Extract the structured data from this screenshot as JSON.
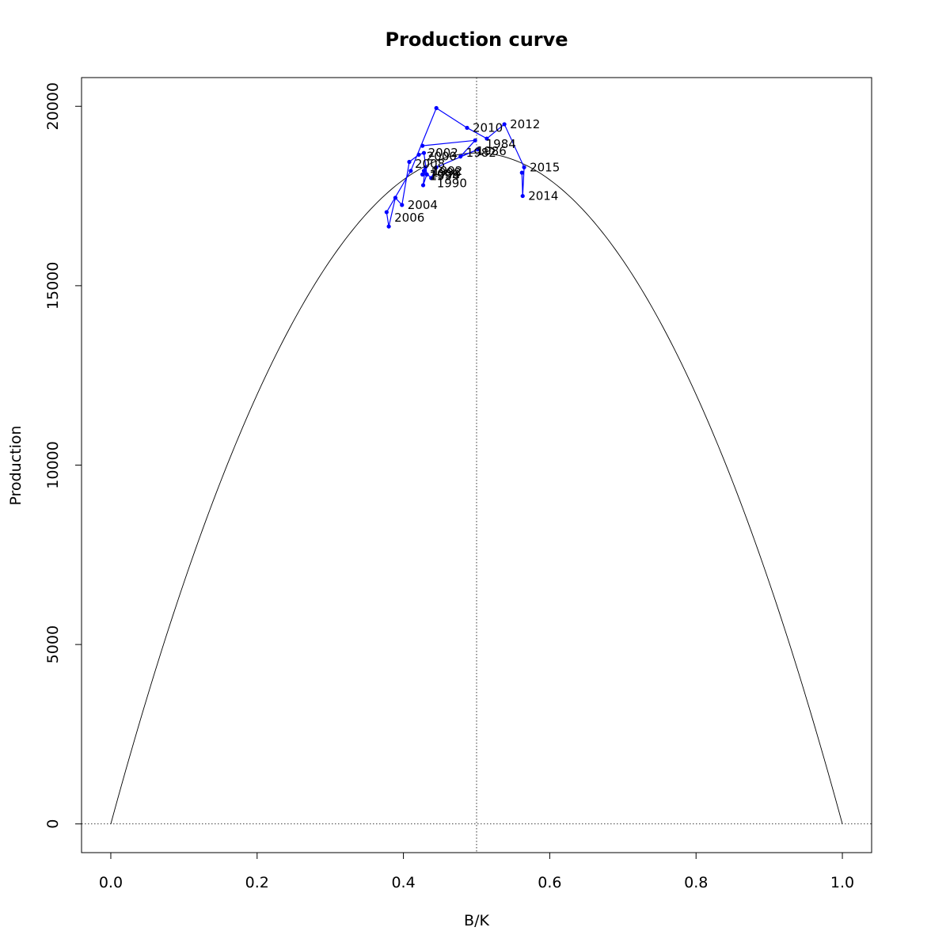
{
  "chart_data": {
    "type": "line",
    "title": "Production curve",
    "xlabel": "B/K",
    "ylabel": "Production",
    "xlim": [
      -0.04,
      1.04
    ],
    "ylim": [
      -800,
      20800
    ],
    "x_ticks": [
      "0.0",
      "0.2",
      "0.4",
      "0.6",
      "0.8",
      "1.0"
    ],
    "y_ticks": [
      "0",
      "5000",
      "10000",
      "15000",
      "20000"
    ],
    "reference_lines": {
      "vertical_x": 0.5,
      "horizontal_y": 0,
      "style": "dotted"
    },
    "curve": {
      "type": "parabola",
      "formula": "4 * MSY * x * (1 - x)",
      "msy": 18700,
      "x_range": [
        0,
        1
      ],
      "color": "#000000"
    },
    "series": [
      {
        "color": "#0000ff",
        "points": [
          {
            "x": 0.426,
            "y": 18900
          },
          {
            "x": 0.498,
            "y": 19050
          },
          {
            "x": 0.478,
            "y": 18600
          },
          {
            "x": 0.502,
            "y": 18800
          },
          {
            "x": 0.445,
            "y": 18300
          },
          {
            "x": 0.438,
            "y": 18000
          },
          {
            "x": 0.428,
            "y": 18200
          },
          {
            "x": 0.426,
            "y": 18100
          },
          {
            "x": 0.43,
            "y": 18300
          },
          {
            "x": 0.427,
            "y": 17800
          },
          {
            "x": 0.432,
            "y": 18100
          },
          {
            "x": 0.428,
            "y": 18700
          },
          {
            "x": 0.421,
            "y": 18650
          },
          {
            "x": 0.408,
            "y": 18450
          },
          {
            "x": 0.398,
            "y": 17250
          },
          {
            "x": 0.389,
            "y": 17450
          },
          {
            "x": 0.38,
            "y": 16650
          },
          {
            "x": 0.377,
            "y": 17050
          },
          {
            "x": 0.41,
            "y": 18200
          },
          {
            "x": 0.445,
            "y": 19950
          },
          {
            "x": 0.487,
            "y": 19400
          },
          {
            "x": 0.514,
            "y": 19100
          },
          {
            "x": 0.538,
            "y": 19500
          },
          {
            "x": 0.565,
            "y": 18300
          },
          {
            "x": 0.563,
            "y": 17500
          },
          {
            "x": 0.562,
            "y": 18150
          }
        ]
      }
    ],
    "annotations": [
      {
        "text": "2010",
        "x": 0.487,
        "y": 19400
      },
      {
        "text": "2012",
        "x": 0.538,
        "y": 19500
      },
      {
        "text": "1984",
        "x": 0.505,
        "y": 18950
      },
      {
        "text": "1982",
        "x": 0.478,
        "y": 18700
      },
      {
        "text": "1986",
        "x": 0.492,
        "y": 18750
      },
      {
        "text": "2002",
        "x": 0.426,
        "y": 18700
      },
      {
        "text": "2000",
        "x": 0.424,
        "y": 18600
      },
      {
        "text": "2008",
        "x": 0.408,
        "y": 18400
      },
      {
        "text": "1992",
        "x": 0.432,
        "y": 18200
      },
      {
        "text": "1998",
        "x": 0.43,
        "y": 18150
      },
      {
        "text": "1996",
        "x": 0.428,
        "y": 18100
      },
      {
        "text": "1994",
        "x": 0.428,
        "y": 18050
      },
      {
        "text": "1990",
        "x": 0.438,
        "y": 17850
      },
      {
        "text": "2004",
        "x": 0.398,
        "y": 17250
      },
      {
        "text": "2006",
        "x": 0.38,
        "y": 16900
      },
      {
        "text": "2015",
        "x": 0.565,
        "y": 18300
      },
      {
        "text": "2014",
        "x": 0.563,
        "y": 17500
      }
    ]
  }
}
